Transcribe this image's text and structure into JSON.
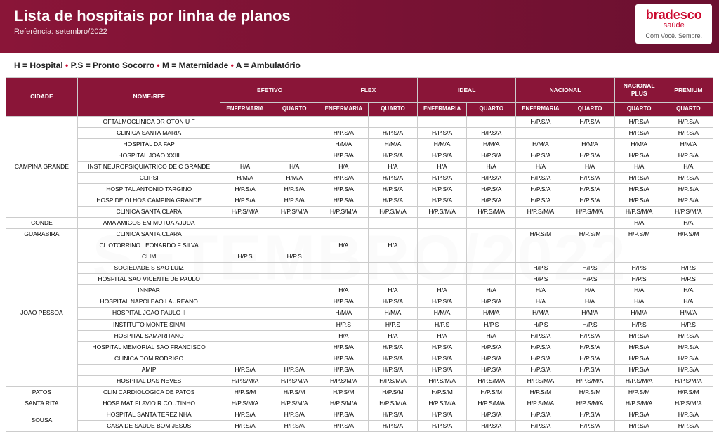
{
  "header": {
    "title": "Lista de hospitais por linha de planos",
    "reference": "Referência: setembro/2022",
    "brand": "bradesco",
    "brand_sub": "saúde",
    "tagline": "Com Você. Sempre."
  },
  "legend": {
    "h": "H = Hospital",
    "ps": "P.S = Pronto Socorro",
    "m": "M = Maternidade",
    "a": "A = Ambulatório"
  },
  "watermark": "SETEMBRO/2022",
  "columns": {
    "city": "CIDADE",
    "name": "NOME-REF",
    "groups": [
      "EFETIVO",
      "FLEX",
      "IDEAL",
      "NACIONAL",
      "NACIONAL PLUS",
      "PREMIUM"
    ],
    "sub": [
      "ENFERMARIA",
      "QUARTO",
      "ENFERMARIA",
      "QUARTO",
      "ENFERMARIA",
      "QUARTO",
      "ENFERMARIA",
      "QUARTO",
      "QUARTO",
      "QUARTO"
    ]
  },
  "cities": [
    {
      "name": "CAMPINA GRANDE",
      "rows": [
        {
          "n": "OFTALMOCLINICA DR OTON U F",
          "v": [
            "",
            "",
            "",
            "",
            "",
            "",
            "H/P.S/A",
            "H/P.S/A",
            "H/P.S/A",
            "H/P.S/A"
          ]
        },
        {
          "n": "CLINICA SANTA MARIA",
          "v": [
            "",
            "",
            "H/P.S/A",
            "H/P.S/A",
            "H/P.S/A",
            "H/P.S/A",
            "",
            "",
            "H/P.S/A",
            "H/P.S/A"
          ]
        },
        {
          "n": "HOSPITAL DA FAP",
          "v": [
            "",
            "",
            "H/M/A",
            "H/M/A",
            "H/M/A",
            "H/M/A",
            "H/M/A",
            "H/M/A",
            "H/M/A",
            "H/M/A"
          ]
        },
        {
          "n": "HOSPITAL JOAO XXIII",
          "v": [
            "",
            "",
            "H/P.S/A",
            "H/P.S/A",
            "H/P.S/A",
            "H/P.S/A",
            "H/P.S/A",
            "H/P.S/A",
            "H/P.S/A",
            "H/P.S/A"
          ]
        },
        {
          "n": "INST NEUROPSIQUIATRICO DE C GRANDE",
          "v": [
            "H/A",
            "H/A",
            "H/A",
            "H/A",
            "H/A",
            "H/A",
            "H/A",
            "H/A",
            "H/A",
            "H/A"
          ]
        },
        {
          "n": "CLIPSI",
          "v": [
            "H/M/A",
            "H/M/A",
            "H/P.S/A",
            "H/P.S/A",
            "H/P.S/A",
            "H/P.S/A",
            "H/P.S/A",
            "H/P.S/A",
            "H/P.S/A",
            "H/P.S/A"
          ]
        },
        {
          "n": "HOSPITAL ANTONIO TARGINO",
          "v": [
            "H/P.S/A",
            "H/P.S/A",
            "H/P.S/A",
            "H/P.S/A",
            "H/P.S/A",
            "H/P.S/A",
            "H/P.S/A",
            "H/P.S/A",
            "H/P.S/A",
            "H/P.S/A"
          ]
        },
        {
          "n": "HOSP DE OLHOS CAMPINA GRANDE",
          "v": [
            "H/P.S/A",
            "H/P.S/A",
            "H/P.S/A",
            "H/P.S/A",
            "H/P.S/A",
            "H/P.S/A",
            "H/P.S/A",
            "H/P.S/A",
            "H/P.S/A",
            "H/P.S/A"
          ]
        },
        {
          "n": "CLINICA SANTA CLARA",
          "v": [
            "H/P.S/M/A",
            "H/P.S/M/A",
            "H/P.S/M/A",
            "H/P.S/M/A",
            "H/P.S/M/A",
            "H/P.S/M/A",
            "H/P.S/M/A",
            "H/P.S/M/A",
            "H/P.S/M/A",
            "H/P.S/M/A"
          ]
        }
      ]
    },
    {
      "name": "CONDE",
      "rows": [
        {
          "n": "AMA AMIGOS EM MUTUA AJUDA",
          "v": [
            "",
            "",
            "",
            "",
            "",
            "",
            "",
            "",
            "H/A",
            "H/A"
          ]
        }
      ]
    },
    {
      "name": "GUARABIRA",
      "rows": [
        {
          "n": "CLINICA SANTA CLARA",
          "v": [
            "",
            "",
            "",
            "",
            "",
            "",
            "H/P.S/M",
            "H/P.S/M",
            "H/P.S/M",
            "H/P.S/M"
          ]
        }
      ]
    },
    {
      "name": "JOAO PESSOA",
      "rows": [
        {
          "n": "CL OTORRINO LEONARDO F SILVA",
          "v": [
            "",
            "",
            "H/A",
            "H/A",
            "",
            "",
            "",
            "",
            "",
            ""
          ]
        },
        {
          "n": "CLIM",
          "v": [
            "H/P.S",
            "H/P.S",
            "",
            "",
            "",
            "",
            "",
            "",
            "",
            ""
          ]
        },
        {
          "n": "SOCIEDADE S SAO LUIZ",
          "v": [
            "",
            "",
            "",
            "",
            "",
            "",
            "H/P.S",
            "H/P.S",
            "H/P.S",
            "H/P.S"
          ]
        },
        {
          "n": "HOSPITAL SAO VICENTE DE PAULO",
          "v": [
            "",
            "",
            "",
            "",
            "",
            "",
            "H/P.S",
            "H/P.S",
            "H/P.S",
            "H/P.S"
          ]
        },
        {
          "n": "INNPAR",
          "v": [
            "",
            "",
            "H/A",
            "H/A",
            "H/A",
            "H/A",
            "H/A",
            "H/A",
            "H/A",
            "H/A"
          ]
        },
        {
          "n": "HOSPITAL NAPOLEAO LAUREANO",
          "v": [
            "",
            "",
            "H/P.S/A",
            "H/P.S/A",
            "H/P.S/A",
            "H/P.S/A",
            "H/A",
            "H/A",
            "H/A",
            "H/A"
          ]
        },
        {
          "n": "HOSPITAL JOAO PAULO II",
          "v": [
            "",
            "",
            "H/M/A",
            "H/M/A",
            "H/M/A",
            "H/M/A",
            "H/M/A",
            "H/M/A",
            "H/M/A",
            "H/M/A"
          ]
        },
        {
          "n": "INSTITUTO MONTE SINAI",
          "v": [
            "",
            "",
            "H/P.S",
            "H/P.S",
            "H/P.S",
            "H/P.S",
            "H/P.S",
            "H/P.S",
            "H/P.S",
            "H/P.S"
          ]
        },
        {
          "n": "HOSPITAL SAMARITANO",
          "v": [
            "",
            "",
            "H/A",
            "H/A",
            "H/A",
            "H/A",
            "H/P.S/A",
            "H/P.S/A",
            "H/P.S/A",
            "H/P.S/A"
          ]
        },
        {
          "n": "HOSPITAL MEMORIAL SAO FRANCISCO",
          "v": [
            "",
            "",
            "H/P.S/A",
            "H/P.S/A",
            "H/P.S/A",
            "H/P.S/A",
            "H/P.S/A",
            "H/P.S/A",
            "H/P.S/A",
            "H/P.S/A"
          ]
        },
        {
          "n": "CLINICA DOM RODRIGO",
          "v": [
            "",
            "",
            "H/P.S/A",
            "H/P.S/A",
            "H/P.S/A",
            "H/P.S/A",
            "H/P.S/A",
            "H/P.S/A",
            "H/P.S/A",
            "H/P.S/A"
          ]
        },
        {
          "n": "AMIP",
          "v": [
            "H/P.S/A",
            "H/P.S/A",
            "H/P.S/A",
            "H/P.S/A",
            "H/P.S/A",
            "H/P.S/A",
            "H/P.S/A",
            "H/P.S/A",
            "H/P.S/A",
            "H/P.S/A"
          ]
        },
        {
          "n": "HOSPITAL DAS NEVES",
          "v": [
            "H/P.S/M/A",
            "H/P.S/M/A",
            "H/P.S/M/A",
            "H/P.S/M/A",
            "H/P.S/M/A",
            "H/P.S/M/A",
            "H/P.S/M/A",
            "H/P.S/M/A",
            "H/P.S/M/A",
            "H/P.S/M/A"
          ]
        }
      ]
    },
    {
      "name": "PATOS",
      "rows": [
        {
          "n": "CLIN CARDIOLOGICA DE PATOS",
          "v": [
            "H/P.S/M",
            "H/P.S/M",
            "H/P.S/M",
            "H/P.S/M",
            "H/P.S/M",
            "H/P.S/M",
            "H/P.S/M",
            "H/P.S/M",
            "H/P.S/M",
            "H/P.S/M"
          ]
        }
      ]
    },
    {
      "name": "SANTA RITA",
      "rows": [
        {
          "n": "HOSP MAT FLAVIO R COUTINHO",
          "v": [
            "H/P.S/M/A",
            "H/P.S/M/A",
            "H/P.S/M/A",
            "H/P.S/M/A",
            "H/P.S/M/A",
            "H/P.S/M/A",
            "H/P.S/M/A",
            "H/P.S/M/A",
            "H/P.S/M/A",
            "H/P.S/M/A"
          ]
        }
      ]
    },
    {
      "name": "SOUSA",
      "rows": [
        {
          "n": "HOSPITAL SANTA TEREZINHA",
          "v": [
            "H/P.S/A",
            "H/P.S/A",
            "H/P.S/A",
            "H/P.S/A",
            "H/P.S/A",
            "H/P.S/A",
            "H/P.S/A",
            "H/P.S/A",
            "H/P.S/A",
            "H/P.S/A"
          ]
        },
        {
          "n": "CASA DE SAUDE BOM JESUS",
          "v": [
            "H/P.S/A",
            "H/P.S/A",
            "H/P.S/A",
            "H/P.S/A",
            "H/P.S/A",
            "H/P.S/A",
            "H/P.S/A",
            "H/P.S/A",
            "H/P.S/A",
            "H/P.S/A"
          ]
        }
      ]
    }
  ]
}
